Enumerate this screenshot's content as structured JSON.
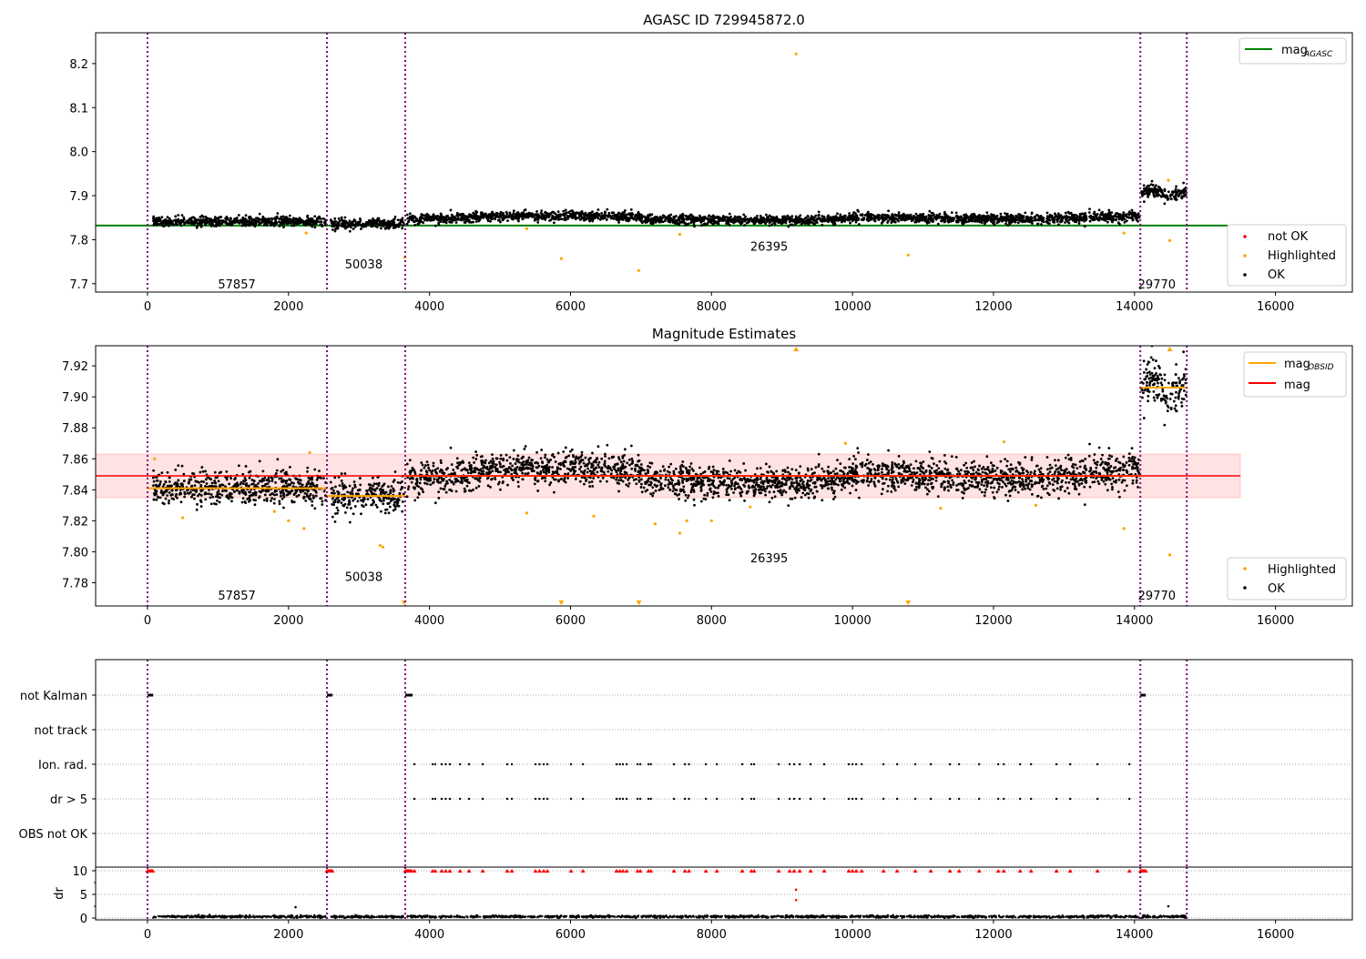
{
  "colors": {
    "ok": "#000000",
    "highlighted": "#ffa500",
    "not_ok": "#ff0000",
    "agasc": "#008000",
    "mag": "#ff0000",
    "mag_obsid": "#ffa500",
    "obs_line": "#800080",
    "band": "#ffc0c0"
  },
  "obs_boundaries": [
    0,
    2545,
    3656,
    14083,
    14742
  ],
  "segments": [
    {
      "obsid": "57857",
      "x": [
        80,
        2530
      ],
      "mean": 7.841,
      "std": 0.0055,
      "label_at": [
        1000,
        7.7
      ],
      "label_at2": [
        1000,
        7.772
      ]
    },
    {
      "obsid": "50038",
      "x": [
        2600,
        3640
      ],
      "mean": 7.836,
      "std": 0.0055,
      "label_at": [
        2800,
        7.745
      ],
      "label_at2": [
        2800,
        7.784
      ]
    },
    {
      "obsid": "26395",
      "x": [
        3680,
        14070
      ],
      "mean": 7.849,
      "std": 0.0055,
      "label_at": [
        8550,
        7.785
      ],
      "label_at2": [
        8550,
        7.796
      ]
    },
    {
      "obsid": "29770",
      "x": [
        14100,
        14730
      ],
      "mean": 7.906,
      "std": 0.0075,
      "label_at": [
        14050,
        7.7
      ],
      "label_at2": [
        14050,
        7.772
      ]
    }
  ],
  "chart_data": [
    {
      "type": "scatter",
      "title": "AGASC ID 729945872.0",
      "xlim": [
        -736,
        17090
      ],
      "ylim": [
        7.681,
        8.27
      ],
      "xticks": [
        "0",
        "2000",
        "4000",
        "6000",
        "8000",
        "10000",
        "12000",
        "14000",
        "16000"
      ],
      "yticks": [
        "7.7",
        "7.8",
        "7.9",
        "8.0",
        "8.1",
        "8.2"
      ],
      "mag_agasc": 7.832,
      "mag_agasc_xrange": [
        -736,
        15320
      ],
      "legend_upper": {
        "main": "mag",
        "sub": "AGASC"
      },
      "legend_lower": [
        "not OK",
        "Highlighted",
        "OK"
      ],
      "highlighted_outliers": [
        [
          9200,
          8.222
        ],
        [
          5870,
          7.757
        ],
        [
          6970,
          7.73
        ],
        [
          10790,
          7.765
        ],
        [
          14500,
          7.798
        ],
        [
          3650,
          7.76
        ],
        [
          13850,
          7.815
        ],
        [
          14480,
          7.935
        ],
        [
          2250,
          7.815
        ],
        [
          7550,
          7.812
        ],
        [
          5380,
          7.825
        ]
      ]
    },
    {
      "type": "scatter",
      "title": "Magnitude Estimates",
      "xlim": [
        -736,
        17090
      ],
      "ylim": [
        7.765,
        7.933
      ],
      "xticks": [
        "0",
        "2000",
        "4000",
        "6000",
        "8000",
        "10000",
        "12000",
        "14000",
        "16000"
      ],
      "yticks": [
        "7.78",
        "7.80",
        "7.82",
        "7.84",
        "7.86",
        "7.88",
        "7.90",
        "7.92"
      ],
      "mag": 7.849,
      "mag_band": [
        7.835,
        7.863
      ],
      "mag_xrange": [
        -736,
        15500
      ],
      "legend_upper": [
        {
          "main": "mag",
          "sub": "OBSID"
        },
        {
          "main": "mag",
          "sub": ""
        }
      ],
      "legend_lower": [
        "Highlighted",
        "OK"
      ],
      "highlighted_outliers": [
        [
          3340,
          7.803
        ],
        [
          3300,
          7.804
        ],
        [
          5380,
          7.825
        ],
        [
          6330,
          7.823
        ],
        [
          7200,
          7.818
        ],
        [
          7550,
          7.812
        ],
        [
          7650,
          7.82
        ],
        [
          8000,
          7.82
        ],
        [
          8550,
          7.829
        ],
        [
          1800,
          7.826
        ],
        [
          2000,
          7.82
        ],
        [
          2220,
          7.815
        ],
        [
          2300,
          7.864
        ],
        [
          13850,
          7.815
        ],
        [
          14500,
          7.798
        ],
        [
          11250,
          7.828
        ],
        [
          12600,
          7.83
        ],
        [
          500,
          7.822
        ],
        [
          100,
          7.86
        ],
        [
          12150,
          7.871
        ],
        [
          9900,
          7.87
        ]
      ],
      "off_scale_low": [
        3640,
        5870,
        6970,
        10790
      ],
      "off_scale_high": [
        9200,
        14500
      ]
    },
    {
      "type": "scatter",
      "xlim": [
        -736,
        17090
      ],
      "xticks": [
        "0",
        "2000",
        "4000",
        "6000",
        "8000",
        "10000",
        "12000",
        "14000",
        "16000"
      ],
      "flag_labels": [
        "not Kalman",
        "not track",
        "Ion. rad.",
        "dr > 5",
        "OBS not OK"
      ],
      "not_kalman_ranges": [
        [
          0,
          80
        ],
        [
          2545,
          2625
        ],
        [
          3656,
          3760
        ],
        [
          14083,
          14160
        ]
      ],
      "ion_rad_times": [
        3786,
        4044,
        4080,
        4173,
        4230,
        4289,
        4432,
        4561,
        4755,
        5103,
        5168,
        5504,
        5560,
        5620,
        5672,
        6008,
        6176,
        6654,
        6700,
        6744,
        6796,
        6951,
        6990,
        7106,
        7140,
        7468,
        7623,
        7680,
        7920,
        8075,
        8437,
        8566,
        8605,
        8953,
        9109,
        9173,
        9251,
        9406,
        9599,
        9948,
        10000,
        10052,
        10129,
        10439,
        10633,
        10891,
        11111,
        11382,
        11512,
        11796,
        12067,
        12145,
        12377,
        12532,
        12894,
        13088,
        13475,
        13928
      ],
      "dr_ylabel": "dr",
      "dr_ylim": [
        -0.38,
        10.77
      ],
      "dr_yticks": [
        "0",
        "5",
        "10"
      ],
      "dr_clip": 10,
      "dr_mean": 0.3
    }
  ]
}
